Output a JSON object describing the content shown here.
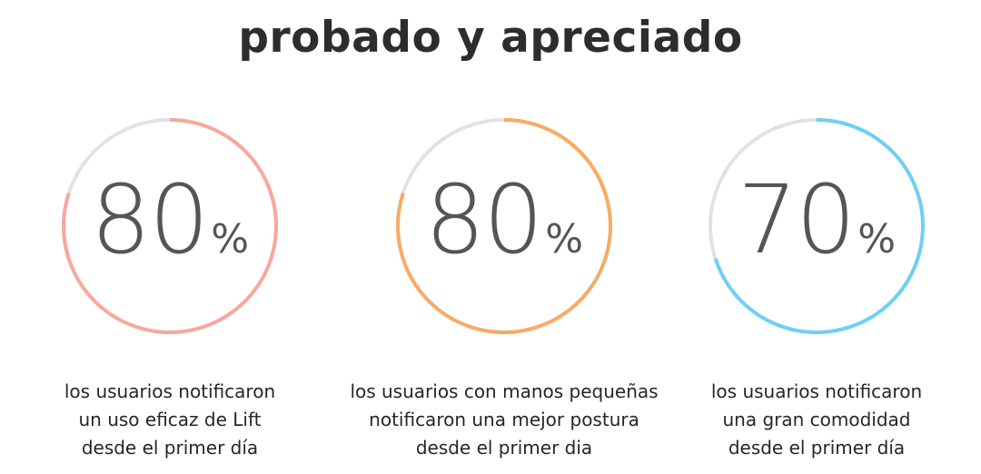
{
  "page": {
    "title": "probado y apreciado"
  },
  "stats": [
    {
      "value": "80",
      "unit": "%",
      "percent": 80,
      "color": "#f9a79d",
      "track_color": "#e2e2e2",
      "caption": [
        "los usuarios notificaron",
        "un uso eficaz de Lift",
        "desde el primer día"
      ]
    },
    {
      "value": "80",
      "unit": "%",
      "percent": 80,
      "color": "#f8ab63",
      "track_color": "#e2e2e2",
      "caption": [
        "los usuarios con manos pequeñas",
        "notificaron una mejor postura",
        "desde el primer dia"
      ]
    },
    {
      "value": "70",
      "unit": "%",
      "percent": 70,
      "color": "#6fcff4",
      "track_color": "#e2e2e2",
      "caption": [
        "los usuarios notificaron",
        "una gran comodidad",
        "desde el primer día"
      ]
    }
  ]
}
